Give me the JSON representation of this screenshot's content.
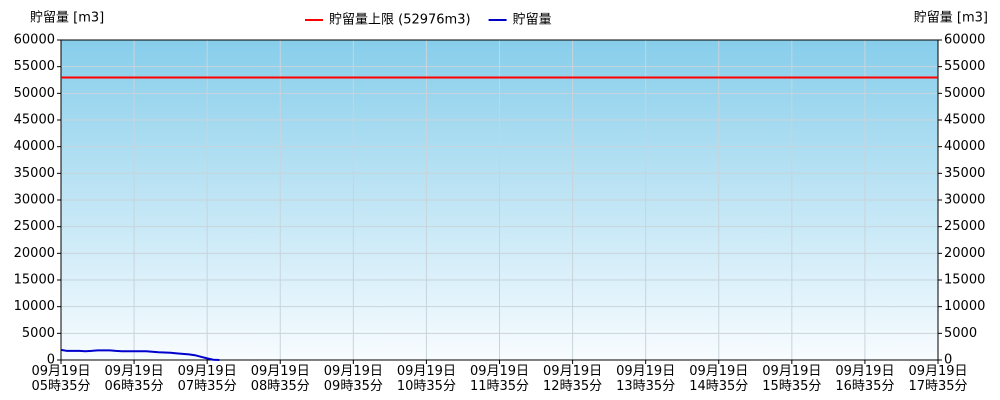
{
  "chart_data": {
    "type": "line",
    "y_label": "貯留量 [m3]",
    "y2_label": "貯留量 [m3]",
    "xlim": [
      335,
      1055
    ],
    "xticks": [
      {
        "value": 335,
        "label": "09月19日\n05時35分"
      },
      {
        "value": 395,
        "label": "09月19日\n06時35分"
      },
      {
        "value": 455,
        "label": "09月19日\n07時35分"
      },
      {
        "value": 515,
        "label": "09月19日\n08時35分"
      },
      {
        "value": 575,
        "label": "09月19日\n09時35分"
      },
      {
        "value": 635,
        "label": "09月19日\n10時35分"
      },
      {
        "value": 695,
        "label": "09月19日\n11時35分"
      },
      {
        "value": 755,
        "label": "09月19日\n12時35分"
      },
      {
        "value": 815,
        "label": "09月19日\n13時35分"
      },
      {
        "value": 875,
        "label": "09月19日\n14時35分"
      },
      {
        "value": 935,
        "label": "09月19日\n15時35分"
      },
      {
        "value": 995,
        "label": "09月19日\n16時35分"
      },
      {
        "value": 1055,
        "label": "09月19日\n17時35分"
      }
    ],
    "ylim": [
      0,
      60000
    ],
    "yticks": [
      0,
      5000,
      10000,
      15000,
      20000,
      25000,
      30000,
      35000,
      40000,
      45000,
      50000,
      55000,
      60000
    ],
    "y2lim": [
      0,
      60000
    ],
    "y2ticks": [
      0,
      5000,
      10000,
      15000,
      20000,
      25000,
      30000,
      35000,
      40000,
      45000,
      50000,
      55000,
      60000
    ],
    "grid": true,
    "legend": "top",
    "series": [
      {
        "name": "貯留量上限 (52976m3)",
        "color": "#ff0000",
        "x": [
          335,
          1055
        ],
        "values": [
          52976,
          52976
        ]
      },
      {
        "name": "貯留量",
        "color": "#0000cc",
        "x": [
          335,
          340,
          345,
          350,
          355,
          360,
          365,
          370,
          375,
          380,
          385,
          390,
          395,
          400,
          405,
          410,
          415,
          420,
          425,
          430,
          435,
          440,
          445,
          450,
          455,
          460,
          465
        ],
        "values": [
          1900,
          1700,
          1700,
          1700,
          1650,
          1700,
          1800,
          1800,
          1800,
          1700,
          1650,
          1650,
          1650,
          1650,
          1650,
          1550,
          1450,
          1400,
          1350,
          1250,
          1150,
          1050,
          900,
          600,
          300,
          50,
          0
        ]
      }
    ]
  }
}
